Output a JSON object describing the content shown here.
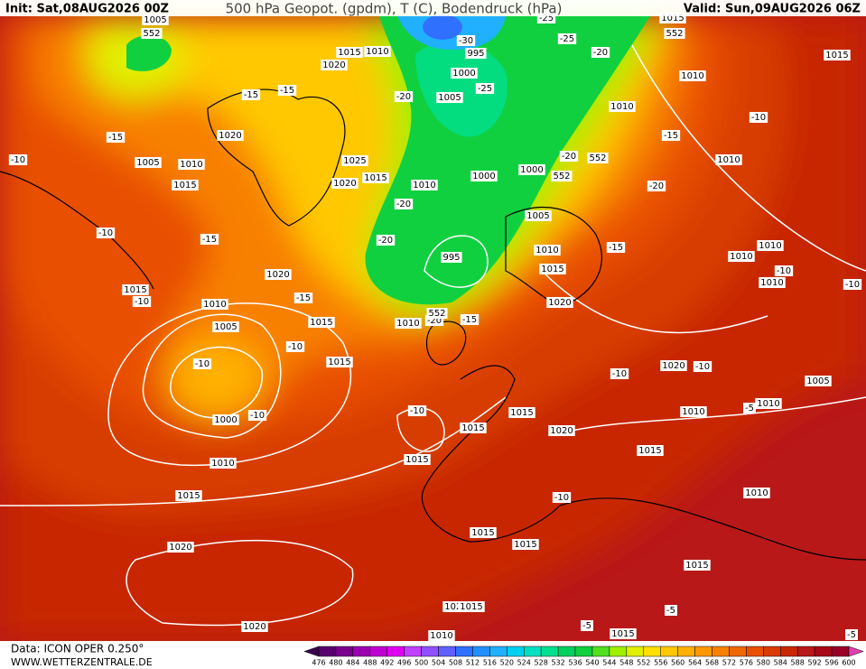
{
  "header": {
    "init": "Init: Sat,08AUG2026 00Z",
    "title": "500 hPa Geopot. (gpdm), T (C), Bodendruck (hPa)",
    "valid": "Valid: Sun,09AUG2026 06Z"
  },
  "footer": {
    "data": "Data: ICON OPER 0.250°",
    "site": "WWW.WETTERZENTRALE.DE"
  },
  "colorbar": {
    "values": [
      476,
      480,
      484,
      488,
      492,
      496,
      500,
      504,
      508,
      512,
      516,
      520,
      524,
      528,
      532,
      536,
      540,
      544,
      548,
      552,
      556,
      560,
      564,
      568,
      572,
      576,
      580,
      584,
      588,
      592,
      596,
      600
    ],
    "colors": [
      "#3a004e",
      "#58006e",
      "#7a008e",
      "#9a00b0",
      "#c000d0",
      "#e000f0",
      "#c040ff",
      "#9050ff",
      "#6060ff",
      "#3070ff",
      "#2090ff",
      "#20b0ff",
      "#00d0f0",
      "#00e0c0",
      "#00e090",
      "#00d060",
      "#10d040",
      "#50e020",
      "#a0f000",
      "#e0f000",
      "#ffe000",
      "#ffc800",
      "#ffb000",
      "#ff9800",
      "#f88000",
      "#f06800",
      "#e85000",
      "#d83c00",
      "#c82800",
      "#b81818",
      "#a80818",
      "#980028",
      "#e040b0"
    ]
  },
  "map_labels": [
    "1005",
    "552",
    "1015",
    "1010",
    "1020",
    "-15",
    "-15",
    "1020",
    "-15",
    "-10",
    "1005",
    "1010",
    "1015",
    "1025",
    "1020",
    "1015",
    "1010",
    "-20",
    "1005",
    "-25",
    "1000",
    "995",
    "-30",
    "-25",
    "-20",
    "1010",
    "1000",
    "1000",
    "552",
    "552",
    "-20",
    "1005",
    "995",
    "-20",
    "-20",
    "-15",
    "-10",
    "1015",
    "-10",
    "1020",
    "-15",
    "1010",
    "1005",
    "1015",
    "1010",
    "-20",
    "-15",
    "552",
    "-10",
    "-10",
    "1015",
    "1000",
    "-10",
    "1010",
    "1015",
    "1020",
    "1020",
    "-10",
    "1015",
    "1015",
    "1015",
    "1020",
    "1015",
    "-10",
    "1015",
    "1015",
    "1020",
    "1015",
    "1010",
    "1015",
    "-5",
    "-5",
    "1015",
    "1010",
    "-5",
    "1020",
    "-10",
    "-10",
    "1010",
    "1010",
    "-5",
    "1005",
    "-10",
    "-10",
    "1010",
    "1010",
    "1010",
    "-15",
    "1010",
    "1015",
    "1020",
    "-20",
    "1010",
    "-15",
    "-10",
    "1010",
    "1015",
    "1015",
    "552",
    "-25"
  ]
}
